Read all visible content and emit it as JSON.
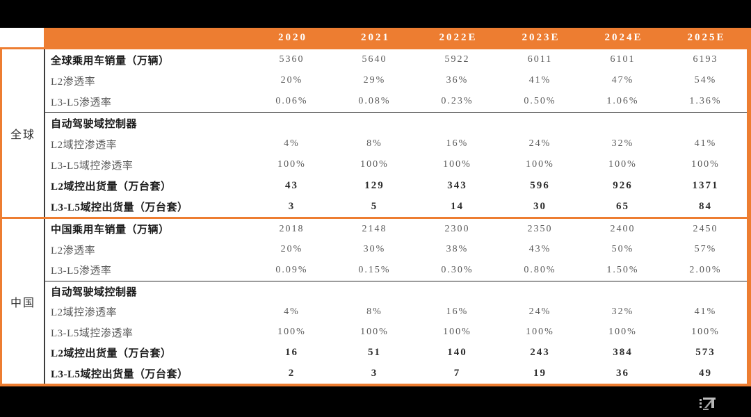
{
  "page": {
    "background_color": "#000000",
    "accent_orange": "#ED7D31",
    "body_background": "#FFFFFF",
    "regular_text_color": "#5A5A5A",
    "bold_text_color": "#1C1C1C",
    "header_text_color": "#FFFFFF"
  },
  "table": {
    "columns": [
      "2020",
      "2021",
      "2022E",
      "2023E",
      "2024E",
      "2025E"
    ],
    "sections": [
      {
        "region_label": "全球",
        "rows": [
          {
            "label": "全球乘用车销量（万辆）",
            "bold": true,
            "values_bold": false,
            "divider_above": false,
            "values": [
              "5360",
              "5640",
              "5922",
              "6011",
              "6101",
              "6193"
            ]
          },
          {
            "label": "L2渗透率",
            "bold": false,
            "values_bold": false,
            "divider_above": false,
            "values": [
              "20%",
              "29%",
              "36%",
              "41%",
              "47%",
              "54%"
            ]
          },
          {
            "label": "L3-L5渗透率",
            "bold": false,
            "values_bold": false,
            "divider_above": false,
            "values": [
              "0.06%",
              "0.08%",
              "0.23%",
              "0.50%",
              "1.06%",
              "1.36%"
            ]
          },
          {
            "label": "自动驾驶域控制器",
            "bold": true,
            "values_bold": false,
            "divider_above": true,
            "values": [
              "",
              "",
              "",
              "",
              "",
              ""
            ]
          },
          {
            "label": "L2域控渗透率",
            "bold": false,
            "values_bold": false,
            "divider_above": false,
            "values": [
              "4%",
              "8%",
              "16%",
              "24%",
              "32%",
              "41%"
            ]
          },
          {
            "label": "L3-L5域控渗透率",
            "bold": false,
            "values_bold": false,
            "divider_above": false,
            "values": [
              "100%",
              "100%",
              "100%",
              "100%",
              "100%",
              "100%"
            ]
          },
          {
            "label": "L2域控出货量（万台套）",
            "bold": true,
            "values_bold": true,
            "divider_above": false,
            "values": [
              "43",
              "129",
              "343",
              "596",
              "926",
              "1371"
            ]
          },
          {
            "label": "L3-L5域控出货量（万台套）",
            "bold": true,
            "values_bold": true,
            "divider_above": false,
            "values": [
              "3",
              "5",
              "14",
              "30",
              "65",
              "84"
            ]
          }
        ]
      },
      {
        "region_label": "中国",
        "rows": [
          {
            "label": "中国乘用车销量（万辆）",
            "bold": true,
            "values_bold": false,
            "divider_above": false,
            "values": [
              "2018",
              "2148",
              "2300",
              "2350",
              "2400",
              "2450"
            ]
          },
          {
            "label": "L2渗透率",
            "bold": false,
            "values_bold": false,
            "divider_above": false,
            "values": [
              "20%",
              "30%",
              "38%",
              "43%",
              "50%",
              "57%"
            ]
          },
          {
            "label": "L3-L5渗透率",
            "bold": false,
            "values_bold": false,
            "divider_above": false,
            "values": [
              "0.09%",
              "0.15%",
              "0.30%",
              "0.80%",
              "1.50%",
              "2.00%"
            ]
          },
          {
            "label": "自动驾驶域控制器",
            "bold": true,
            "values_bold": false,
            "divider_above": true,
            "values": [
              "",
              "",
              "",
              "",
              "",
              ""
            ]
          },
          {
            "label": "L2域控渗透率",
            "bold": false,
            "values_bold": false,
            "divider_above": false,
            "values": [
              "4%",
              "8%",
              "16%",
              "24%",
              "32%",
              "41%"
            ]
          },
          {
            "label": "L3-L5域控渗透率",
            "bold": false,
            "values_bold": false,
            "divider_above": false,
            "values": [
              "100%",
              "100%",
              "100%",
              "100%",
              "100%",
              "100%"
            ]
          },
          {
            "label": "L2域控出货量（万台套）",
            "bold": true,
            "values_bold": true,
            "divider_above": false,
            "values": [
              "16",
              "51",
              "140",
              "243",
              "384",
              "573"
            ]
          },
          {
            "label": "L3-L5域控出货量（万台套）",
            "bold": true,
            "values_bold": true,
            "divider_above": false,
            "values": [
              "2",
              "3",
              "7",
              "19",
              "36",
              "49"
            ]
          }
        ]
      }
    ]
  }
}
